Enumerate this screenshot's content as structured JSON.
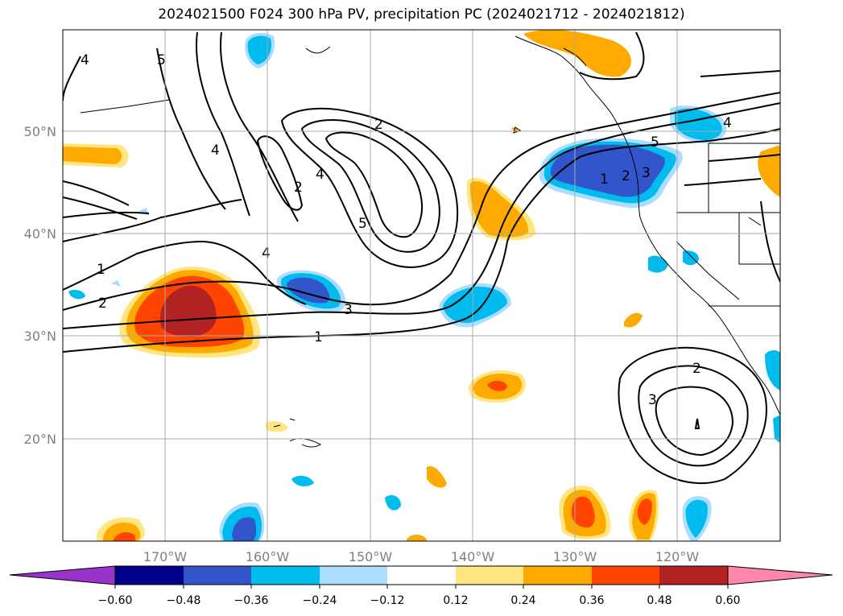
{
  "title": "2024021500 F024 300 hPa PV, precipitation PC (2024021712 - 2024021812)",
  "lat_labels": [
    "50°N",
    "40°N",
    "30°N",
    "20°N"
  ],
  "lon_labels": [
    "170°W",
    "160°W",
    "150°W",
    "140°W",
    "130°W",
    "120°W"
  ],
  "colorbar": {
    "ticks": [
      "−0.60",
      "−0.48",
      "−0.36",
      "−0.24",
      "−0.12",
      "0.12",
      "0.24",
      "0.36",
      "0.48",
      "0.60"
    ],
    "colors": [
      "#9933cc",
      "#00008b",
      "#3355cc",
      "#00bbee",
      "#aaddff",
      "#ffffff",
      "#ffe680",
      "#ffaa00",
      "#ff4400",
      "#b22222",
      "#ff88aa"
    ]
  },
  "contour_labels": [
    "4",
    "5",
    "4",
    "2",
    "2",
    "4",
    "5",
    "1",
    "2",
    "4",
    "3",
    "1",
    "1",
    "2",
    "3",
    "4",
    "5",
    "2",
    "3"
  ]
}
